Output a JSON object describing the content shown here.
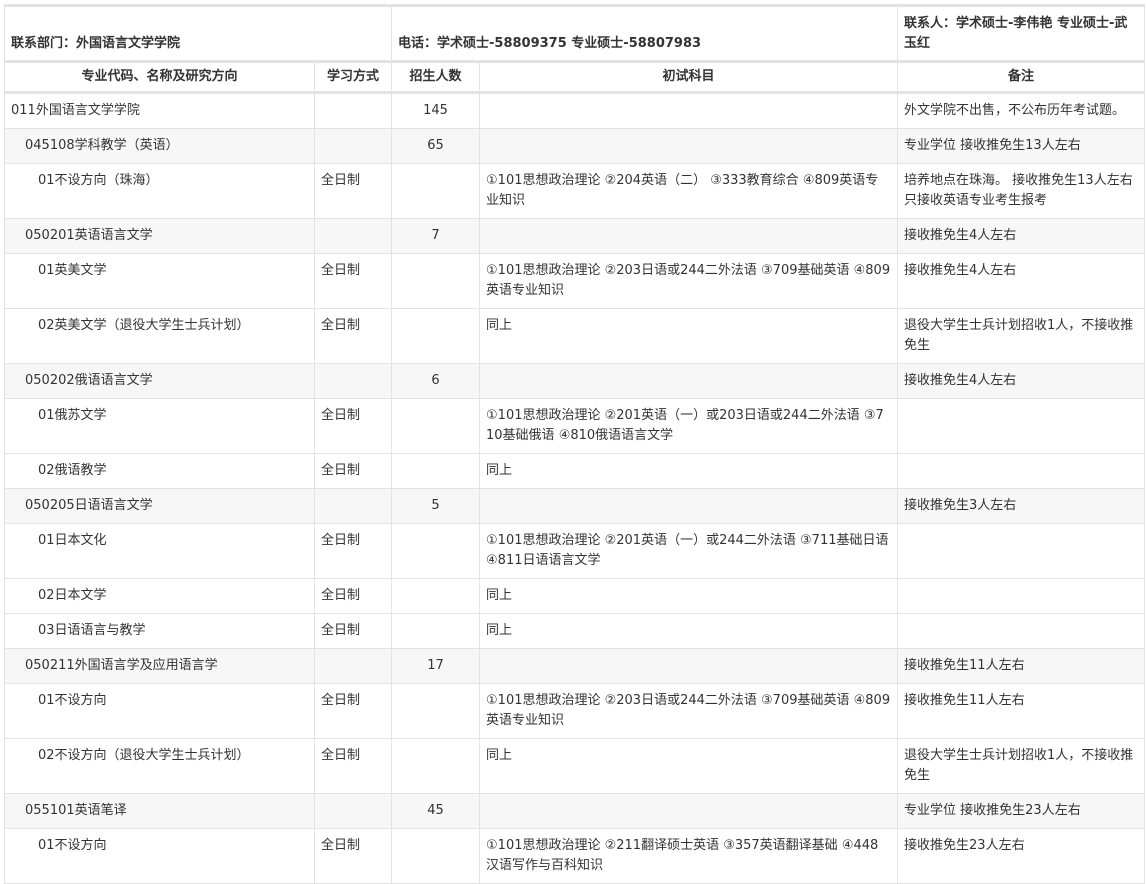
{
  "contact": {
    "department": "联系部门：外国语言文学学院",
    "phone": "电话：学术硕士-58809375 专业硕士-58807983",
    "person": "联系人：学术硕士-李伟艳 专业硕士-武玉红"
  },
  "headers": [
    "专业代码、名称及研究方向",
    "学习方式",
    "招生人数",
    "初试科目",
    "备注"
  ],
  "rows": [
    {
      "level": 0,
      "name": "011外国语言文学学院",
      "mode": "",
      "count": "145",
      "subjects": "",
      "note": "外文学院不出售，不公布历年考试题。"
    },
    {
      "level": 1,
      "name": "045108学科教学（英语）",
      "mode": "",
      "count": "65",
      "subjects": "",
      "note": "专业学位 接收推免生13人左右"
    },
    {
      "level": 2,
      "name": "01不设方向（珠海）",
      "mode": "全日制",
      "count": "",
      "subjects": "①101思想政治理论 ②204英语（二） ③333教育综合 ④809英语专业知识",
      "note": "培养地点在珠海。 接收推免生13人左右 只接收英语专业考生报考"
    },
    {
      "level": 1,
      "name": "050201英语语言文学",
      "mode": "",
      "count": "7",
      "subjects": "",
      "note": "接收推免生4人左右"
    },
    {
      "level": 2,
      "name": "01英美文学",
      "mode": "全日制",
      "count": "",
      "subjects": "①101思想政治理论 ②203日语或244二外法语 ③709基础英语 ④809英语专业知识",
      "note": "接收推免生4人左右"
    },
    {
      "level": 2,
      "name": "02英美文学（退役大学生士兵计划）",
      "mode": "全日制",
      "count": "",
      "subjects": "同上",
      "note": "退役大学生士兵计划招收1人，不接收推免生"
    },
    {
      "level": 1,
      "name": "050202俄语语言文学",
      "mode": "",
      "count": "6",
      "subjects": "",
      "note": "接收推免生4人左右"
    },
    {
      "level": 2,
      "name": "01俄苏文学",
      "mode": "全日制",
      "count": "",
      "subjects": "①101思想政治理论 ②201英语（一）或203日语或244二外法语 ③710基础俄语 ④810俄语语言文学",
      "note": ""
    },
    {
      "level": 2,
      "name": "02俄语教学",
      "mode": "全日制",
      "count": "",
      "subjects": "同上",
      "note": ""
    },
    {
      "level": 1,
      "name": "050205日语语言文学",
      "mode": "",
      "count": "5",
      "subjects": "",
      "note": "接收推免生3人左右"
    },
    {
      "level": 2,
      "name": "01日本文化",
      "mode": "全日制",
      "count": "",
      "subjects": "①101思想政治理论 ②201英语（一）或244二外法语 ③711基础日语 ④811日语语言文学",
      "note": ""
    },
    {
      "level": 2,
      "name": "02日本文学",
      "mode": "全日制",
      "count": "",
      "subjects": "同上",
      "note": ""
    },
    {
      "level": 2,
      "name": "03日语语言与教学",
      "mode": "全日制",
      "count": "",
      "subjects": "同上",
      "note": ""
    },
    {
      "level": 1,
      "name": "050211外国语言学及应用语言学",
      "mode": "",
      "count": "17",
      "subjects": "",
      "note": "接收推免生11人左右"
    },
    {
      "level": 2,
      "name": "01不设方向",
      "mode": "全日制",
      "count": "",
      "subjects": "①101思想政治理论 ②203日语或244二外法语 ③709基础英语 ④809英语专业知识",
      "note": "接收推免生11人左右"
    },
    {
      "level": 2,
      "name": "02不设方向（退役大学生士兵计划）",
      "mode": "全日制",
      "count": "",
      "subjects": "同上",
      "note": "退役大学生士兵计划招收1人，不接收推免生"
    },
    {
      "level": 1,
      "name": "055101英语笔译",
      "mode": "",
      "count": "45",
      "subjects": "",
      "note": "专业学位 接收推免生23人左右"
    },
    {
      "level": 2,
      "name": "01不设方向",
      "mode": "全日制",
      "count": "",
      "subjects": "①101思想政治理论 ②211翻译硕士英语 ③357英语翻译基础 ④448汉语写作与百科知识",
      "note": "接收推免生23人左右"
    }
  ]
}
